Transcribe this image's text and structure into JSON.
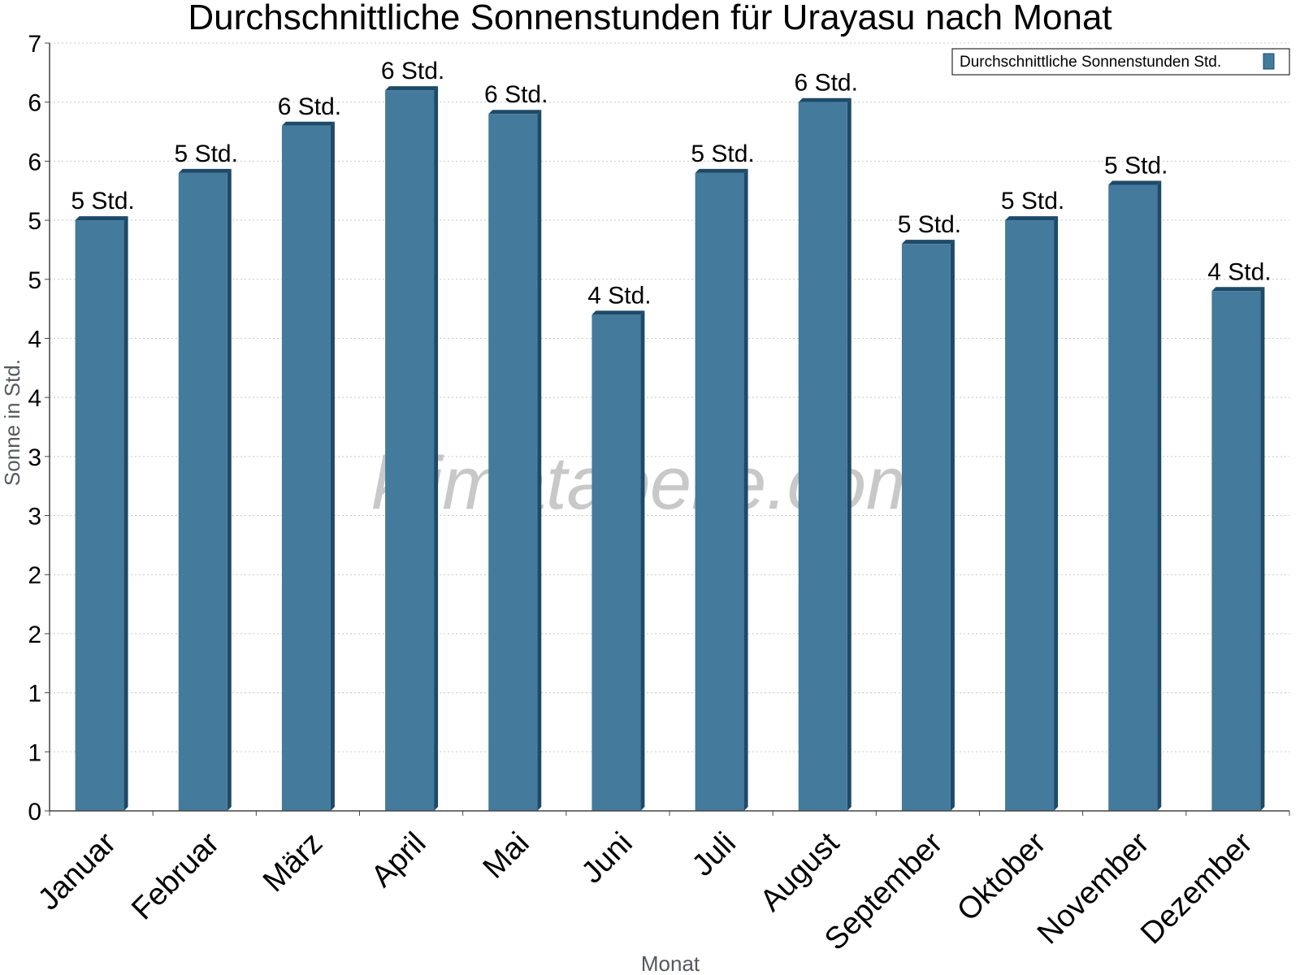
{
  "chart_data": {
    "type": "bar",
    "title": "Durchschnittliche Sonnenstunden für Urayasu nach Monat",
    "xlabel": "Monat",
    "ylabel": "Sonne in Std.",
    "ylim": [
      0,
      6.5
    ],
    "yticks": [
      0,
      0.5,
      1.0,
      1.5,
      2.0,
      2.5,
      3.0,
      3.5,
      4.0,
      4.5,
      5.0,
      5.5,
      6.0,
      6.5
    ],
    "ytick_labels": [
      "0",
      "1",
      "1",
      "2",
      "2",
      "3",
      "3",
      "4",
      "4",
      "5",
      "5",
      "6",
      "6",
      "7"
    ],
    "grid": true,
    "legend_position": "top-right",
    "categories": [
      "Januar",
      "Februar",
      "März",
      "April",
      "Mai",
      "Juni",
      "Juli",
      "August",
      "September",
      "Oktober",
      "November",
      "Dezember"
    ],
    "series": [
      {
        "name": "Durchschnittliche Sonnenstunden Std.",
        "color": "#447a9c",
        "values": [
          5.0,
          5.4,
          5.8,
          6.1,
          5.9,
          4.2,
          5.4,
          6.0,
          4.8,
          5.0,
          5.3,
          4.4
        ],
        "labels": [
          "5 Std.",
          "5 Std.",
          "6 Std.",
          "6 Std.",
          "6 Std.",
          "4 Std.",
          "5 Std.",
          "6 Std.",
          "5 Std.",
          "5 Std.",
          "5 Std.",
          "4 Std."
        ]
      }
    ]
  },
  "watermark": "klimatabelle.com"
}
